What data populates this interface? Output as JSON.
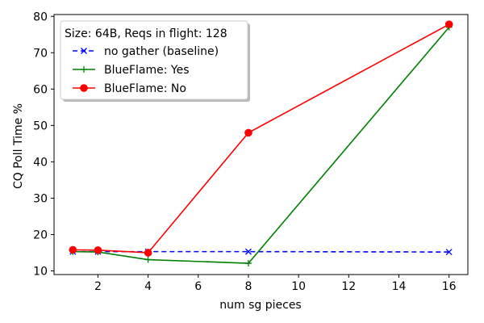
{
  "chart_data": {
    "type": "line",
    "xlabel": "num sg pieces",
    "ylabel": "CQ Poll Time %",
    "xlim": [
      0.25,
      16.75
    ],
    "ylim": [
      9.0,
      80.5
    ],
    "xticks": [
      2,
      4,
      6,
      8,
      10,
      12,
      14,
      16
    ],
    "yticks": [
      10,
      20,
      30,
      40,
      50,
      60,
      70,
      80
    ],
    "grid": false,
    "legend": {
      "title": "Size: 64B, Reqs in flight: 128",
      "placement": "top-left"
    },
    "series": [
      {
        "name": "no gather (baseline)",
        "color": "#0000ff",
        "linestyle": "dashed",
        "marker": "x",
        "x": [
          1,
          2,
          4,
          8,
          16
        ],
        "y": [
          15.3,
          15.3,
          15.3,
          15.3,
          15.2
        ]
      },
      {
        "name": "BlueFlame: Yes",
        "color": "#008000",
        "linestyle": "solid",
        "marker": "+",
        "x": [
          1,
          2,
          4,
          8,
          16
        ],
        "y": [
          15.3,
          15.2,
          13.1,
          12.1,
          77.0
        ]
      },
      {
        "name": "BlueFlame: No",
        "color": "#ff0000",
        "linestyle": "solid",
        "marker": "o",
        "x": [
          1,
          2,
          4,
          8,
          16
        ],
        "y": [
          15.8,
          15.7,
          15.0,
          48.0,
          77.8
        ]
      }
    ]
  }
}
